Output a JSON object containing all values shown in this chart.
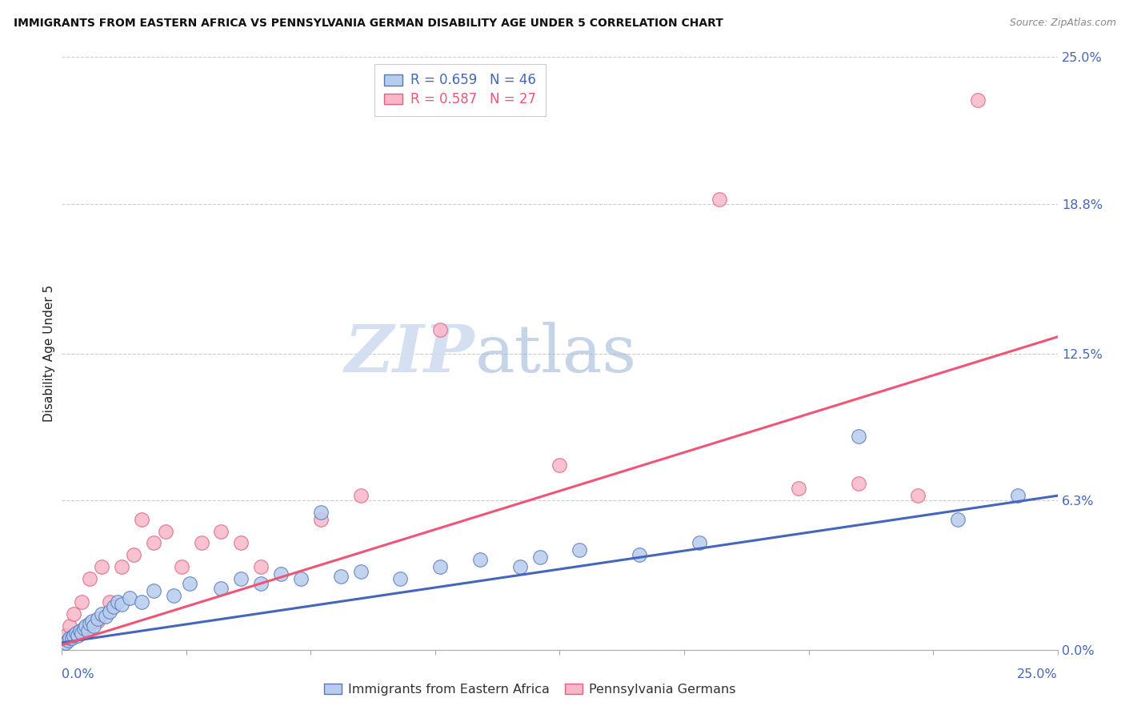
{
  "title": "IMMIGRANTS FROM EASTERN AFRICA VS PENNSYLVANIA GERMAN DISABILITY AGE UNDER 5 CORRELATION CHART",
  "source": "Source: ZipAtlas.com",
  "ylabel": "Disability Age Under 5",
  "ytick_values": [
    0.0,
    6.3,
    12.5,
    18.8,
    25.0
  ],
  "xlim": [
    0.0,
    25.0
  ],
  "ylim": [
    0.0,
    25.0
  ],
  "blue_fill": "#B8CCEE",
  "blue_edge": "#5577BB",
  "pink_fill": "#F9B8C8",
  "pink_edge": "#E06080",
  "blue_line": "#4466BB",
  "pink_line": "#EE5577",
  "blue_reg": [
    0.0,
    0.3,
    25.0,
    6.5
  ],
  "pink_reg": [
    0.0,
    0.2,
    25.0,
    13.2
  ],
  "blue_scatter_x": [
    0.1,
    0.15,
    0.2,
    0.25,
    0.3,
    0.35,
    0.4,
    0.45,
    0.5,
    0.55,
    0.6,
    0.65,
    0.7,
    0.75,
    0.8,
    0.9,
    1.0,
    1.1,
    1.2,
    1.3,
    1.4,
    1.5,
    1.7,
    2.0,
    2.3,
    2.8,
    3.2,
    4.0,
    4.5,
    5.0,
    5.5,
    6.0,
    6.5,
    7.0,
    7.5,
    8.5,
    9.5,
    10.5,
    11.5,
    12.0,
    13.0,
    14.5,
    16.0,
    20.0,
    22.5,
    24.0
  ],
  "blue_scatter_y": [
    0.3,
    0.4,
    0.5,
    0.5,
    0.6,
    0.7,
    0.6,
    0.8,
    0.7,
    0.9,
    1.0,
    0.8,
    1.1,
    1.2,
    1.0,
    1.3,
    1.5,
    1.4,
    1.6,
    1.8,
    2.0,
    1.9,
    2.2,
    2.0,
    2.5,
    2.3,
    2.8,
    2.6,
    3.0,
    2.8,
    3.2,
    3.0,
    5.8,
    3.1,
    3.3,
    3.0,
    3.5,
    3.8,
    3.5,
    3.9,
    4.2,
    4.0,
    4.5,
    9.0,
    5.5,
    6.5
  ],
  "pink_scatter_x": [
    0.1,
    0.2,
    0.3,
    0.5,
    0.7,
    0.9,
    1.0,
    1.2,
    1.5,
    1.8,
    2.0,
    2.3,
    2.6,
    3.0,
    3.5,
    4.0,
    4.5,
    5.0,
    6.5,
    7.5,
    9.5,
    12.5,
    16.5,
    18.5,
    20.0,
    21.5,
    23.0
  ],
  "pink_scatter_y": [
    0.6,
    1.0,
    1.5,
    2.0,
    3.0,
    1.2,
    3.5,
    2.0,
    3.5,
    4.0,
    5.5,
    4.5,
    5.0,
    3.5,
    4.5,
    5.0,
    4.5,
    3.5,
    5.5,
    6.5,
    13.5,
    7.8,
    19.0,
    6.8,
    7.0,
    6.5,
    23.2
  ],
  "watermark_zip_color": "#D0DCF0",
  "watermark_atlas_color": "#A0B8D8",
  "legend_blue_label": "R = 0.659   N = 46",
  "legend_pink_label": "R = 0.587   N = 27"
}
